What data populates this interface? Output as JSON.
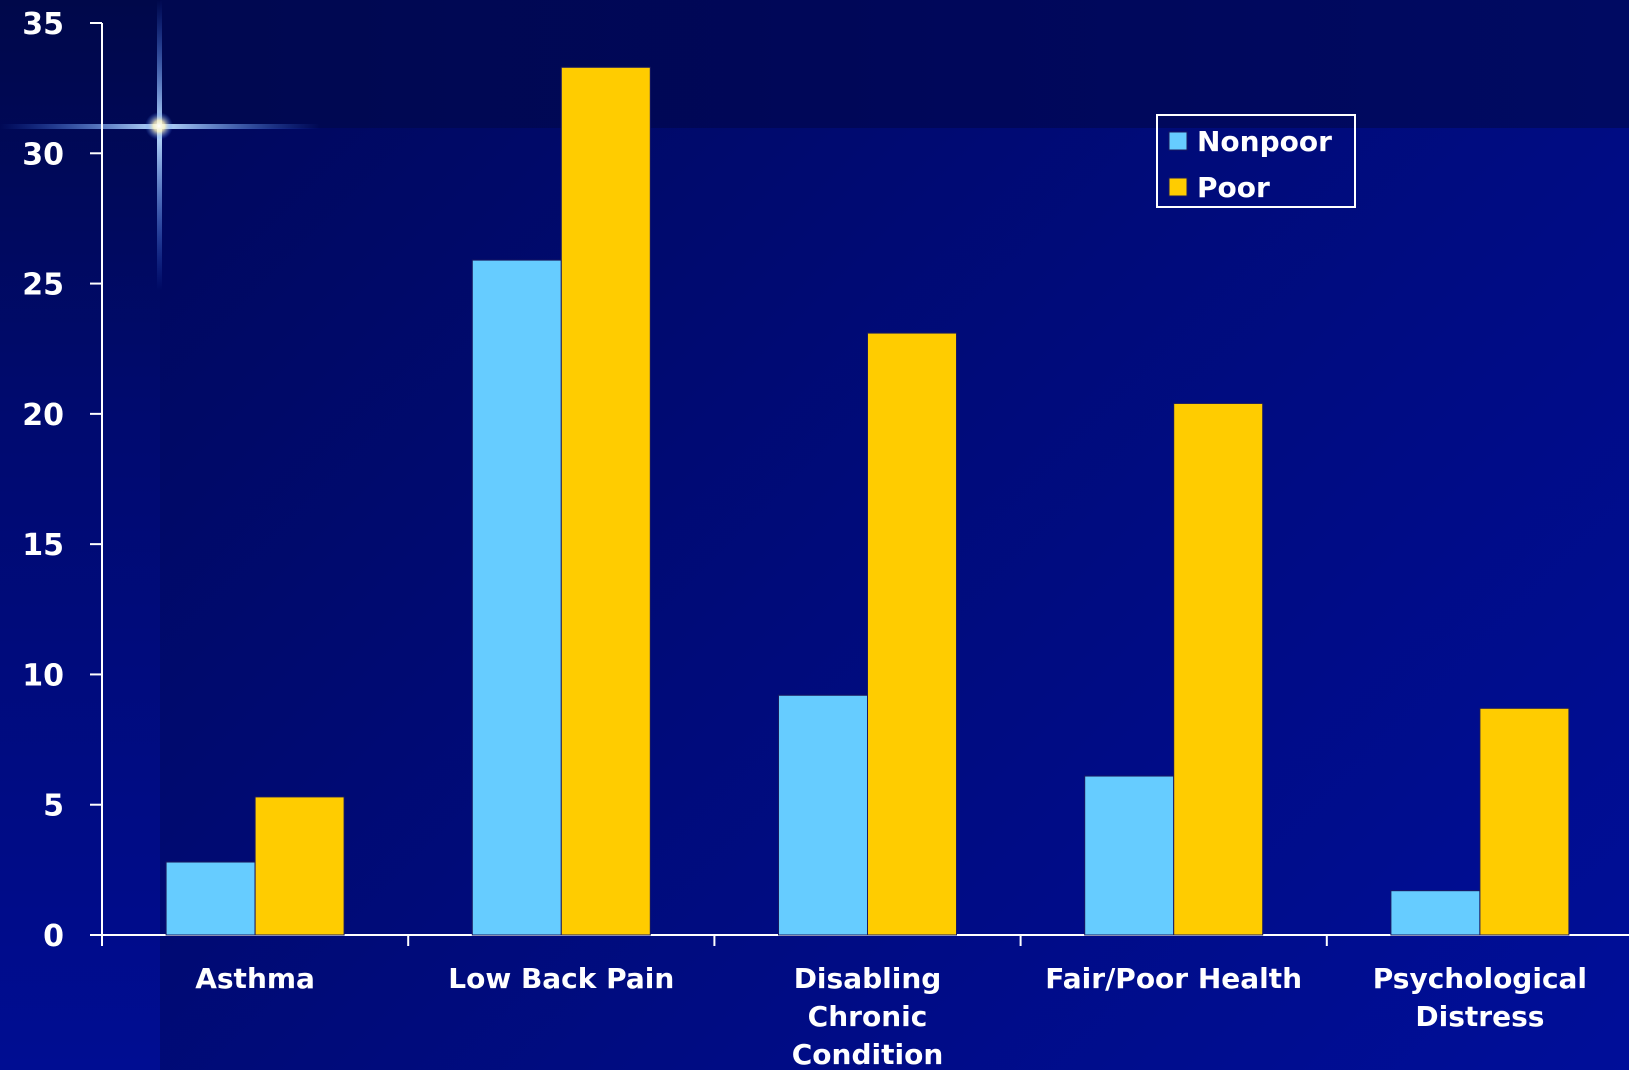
{
  "chart_data": {
    "type": "bar",
    "categories": [
      "Asthma",
      "Low Back Pain",
      "Disabling Chronic Condition",
      "Fair/Poor Health",
      "Psychological Distress"
    ],
    "category_lines": [
      [
        "Asthma"
      ],
      [
        "Low Back Pain"
      ],
      [
        "Disabling",
        "Chronic",
        "Condition"
      ],
      [
        "Fair/Poor Health"
      ],
      [
        "Psychological",
        "Distress"
      ]
    ],
    "series": [
      {
        "name": "Nonpoor",
        "color": "#66ccff",
        "values": [
          2.8,
          25.9,
          9.2,
          6.1,
          1.7
        ]
      },
      {
        "name": "Poor",
        "color": "#ffcc00",
        "values": [
          5.3,
          33.3,
          23.1,
          20.4,
          8.7
        ]
      }
    ],
    "yticks": [
      "0",
      "5",
      "10",
      "15",
      "20",
      "25",
      "30",
      "35"
    ],
    "ylim": [
      0,
      35
    ],
    "title": "",
    "xlabel": "",
    "ylabel": "",
    "grid": false,
    "legend_position": "top-right",
    "colors": {
      "axis": "#ffffff",
      "text": "#ffffff",
      "legend_border": "#ffffff"
    }
  }
}
